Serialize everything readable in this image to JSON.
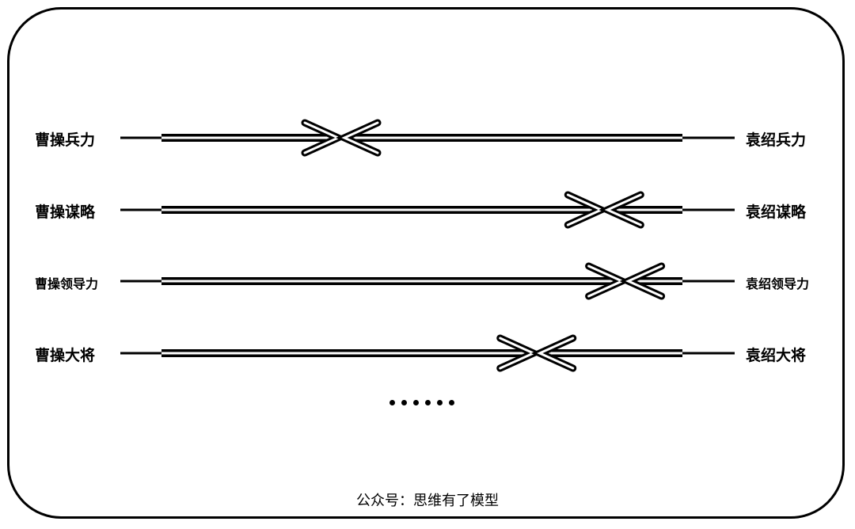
{
  "rows": [
    {
      "left": "曹操兵力",
      "right": "袁绍兵力",
      "meet": 0.345
    },
    {
      "left": "曹操谋略",
      "right": "袁绍谋略",
      "meet": 0.85
    },
    {
      "left": "曹操领导力",
      "right": "袁绍领导力",
      "meet": 0.89
    },
    {
      "left": "曹操大将",
      "right": "袁绍大将",
      "meet": 0.72
    }
  ],
  "ellipsis_count": 6,
  "footer": "公众号：思维有了模型",
  "colors": {
    "stroke": "#000000",
    "background": "#ffffff"
  }
}
